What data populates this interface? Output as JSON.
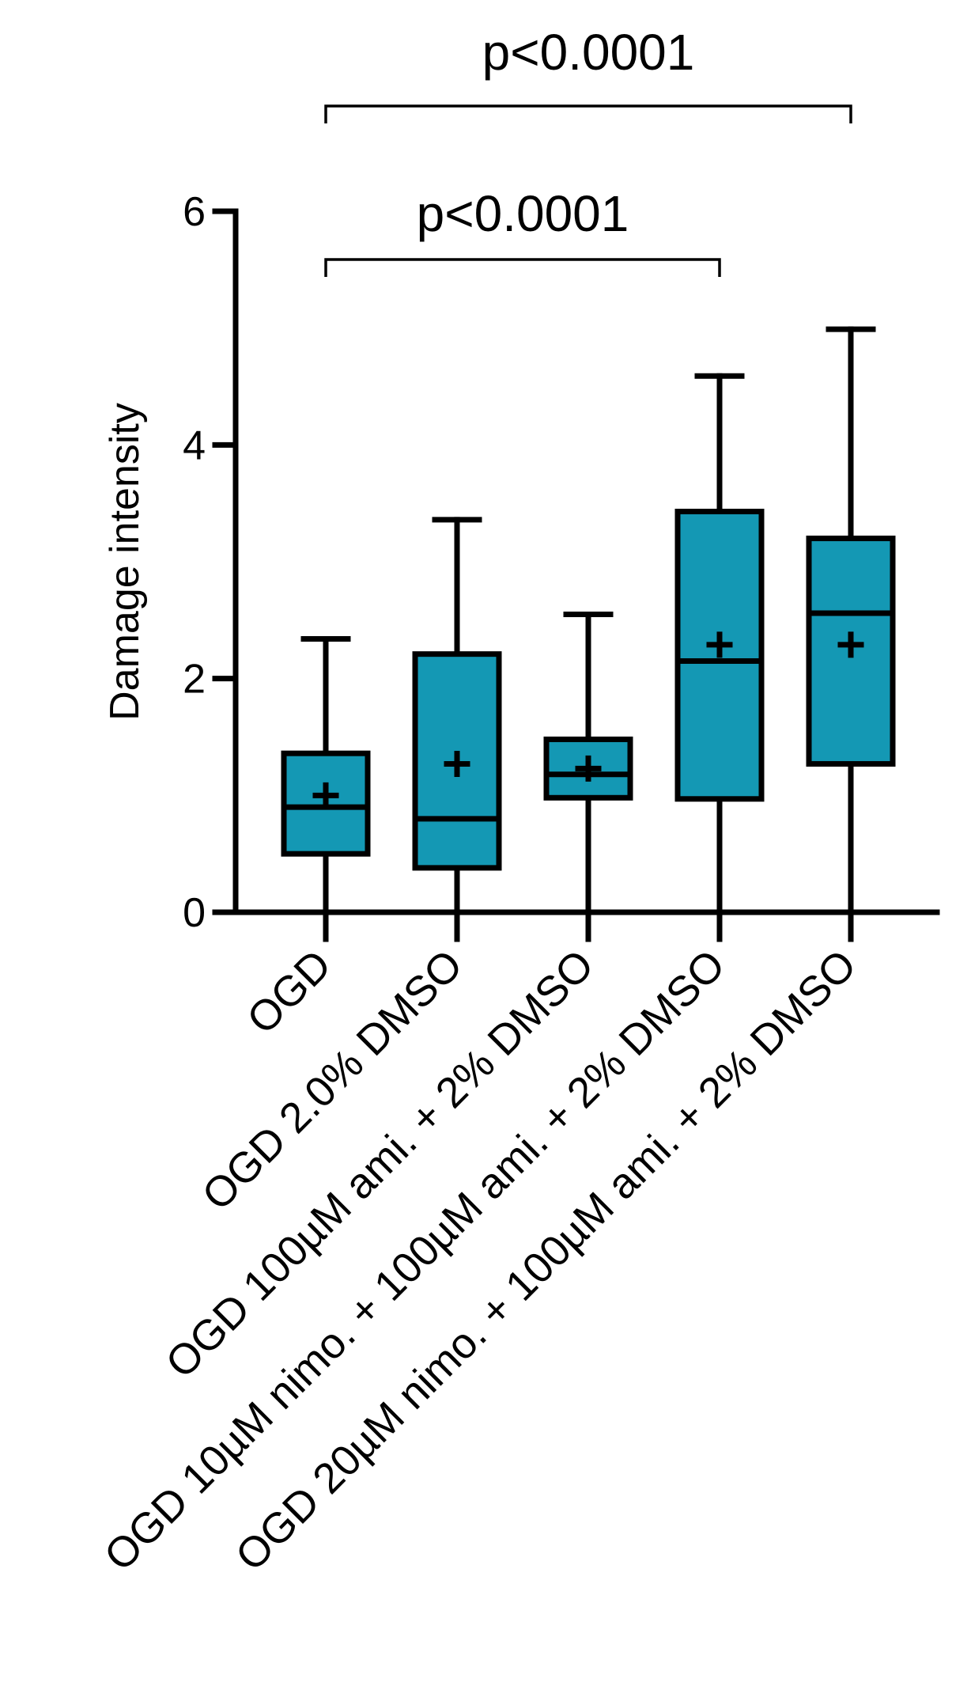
{
  "chart_data": {
    "type": "box",
    "title": "",
    "xlabel": "",
    "ylabel": "Damage intensity",
    "ylim": [
      0,
      6
    ],
    "yticks": [
      0,
      2,
      4,
      6
    ],
    "grid": false,
    "box_color": "#1498b4",
    "categories": [
      "OGD",
      "OGD 2.0% DMSO",
      "OGD 100µM ami. + 2% DMSO",
      "OGD 10µM nimo. + 100µM ami. + 2% DMSO",
      "OGD 20µM nimo. + 100µM ami. + 2% DMSO"
    ],
    "boxes": [
      {
        "min": 0,
        "q1": 0.5,
        "median": 0.9,
        "q3": 1.36,
        "max": 2.34,
        "mean": 1.0
      },
      {
        "min": 0,
        "q1": 0.38,
        "median": 0.8,
        "q3": 2.21,
        "max": 3.36,
        "mean": 1.27
      },
      {
        "min": 0,
        "q1": 0.98,
        "median": 1.18,
        "q3": 1.48,
        "max": 2.55,
        "mean": 1.23
      },
      {
        "min": 0,
        "q1": 0.97,
        "median": 2.15,
        "q3": 3.43,
        "max": 4.59,
        "mean": 2.29
      },
      {
        "min": 0,
        "q1": 1.27,
        "median": 2.56,
        "q3": 3.2,
        "max": 4.99,
        "mean": 2.29
      }
    ],
    "comparisons": [
      {
        "from": 0,
        "to": 3,
        "label": "p<0.0001"
      },
      {
        "from": 0,
        "to": 4,
        "label": "p<0.0001"
      }
    ]
  }
}
